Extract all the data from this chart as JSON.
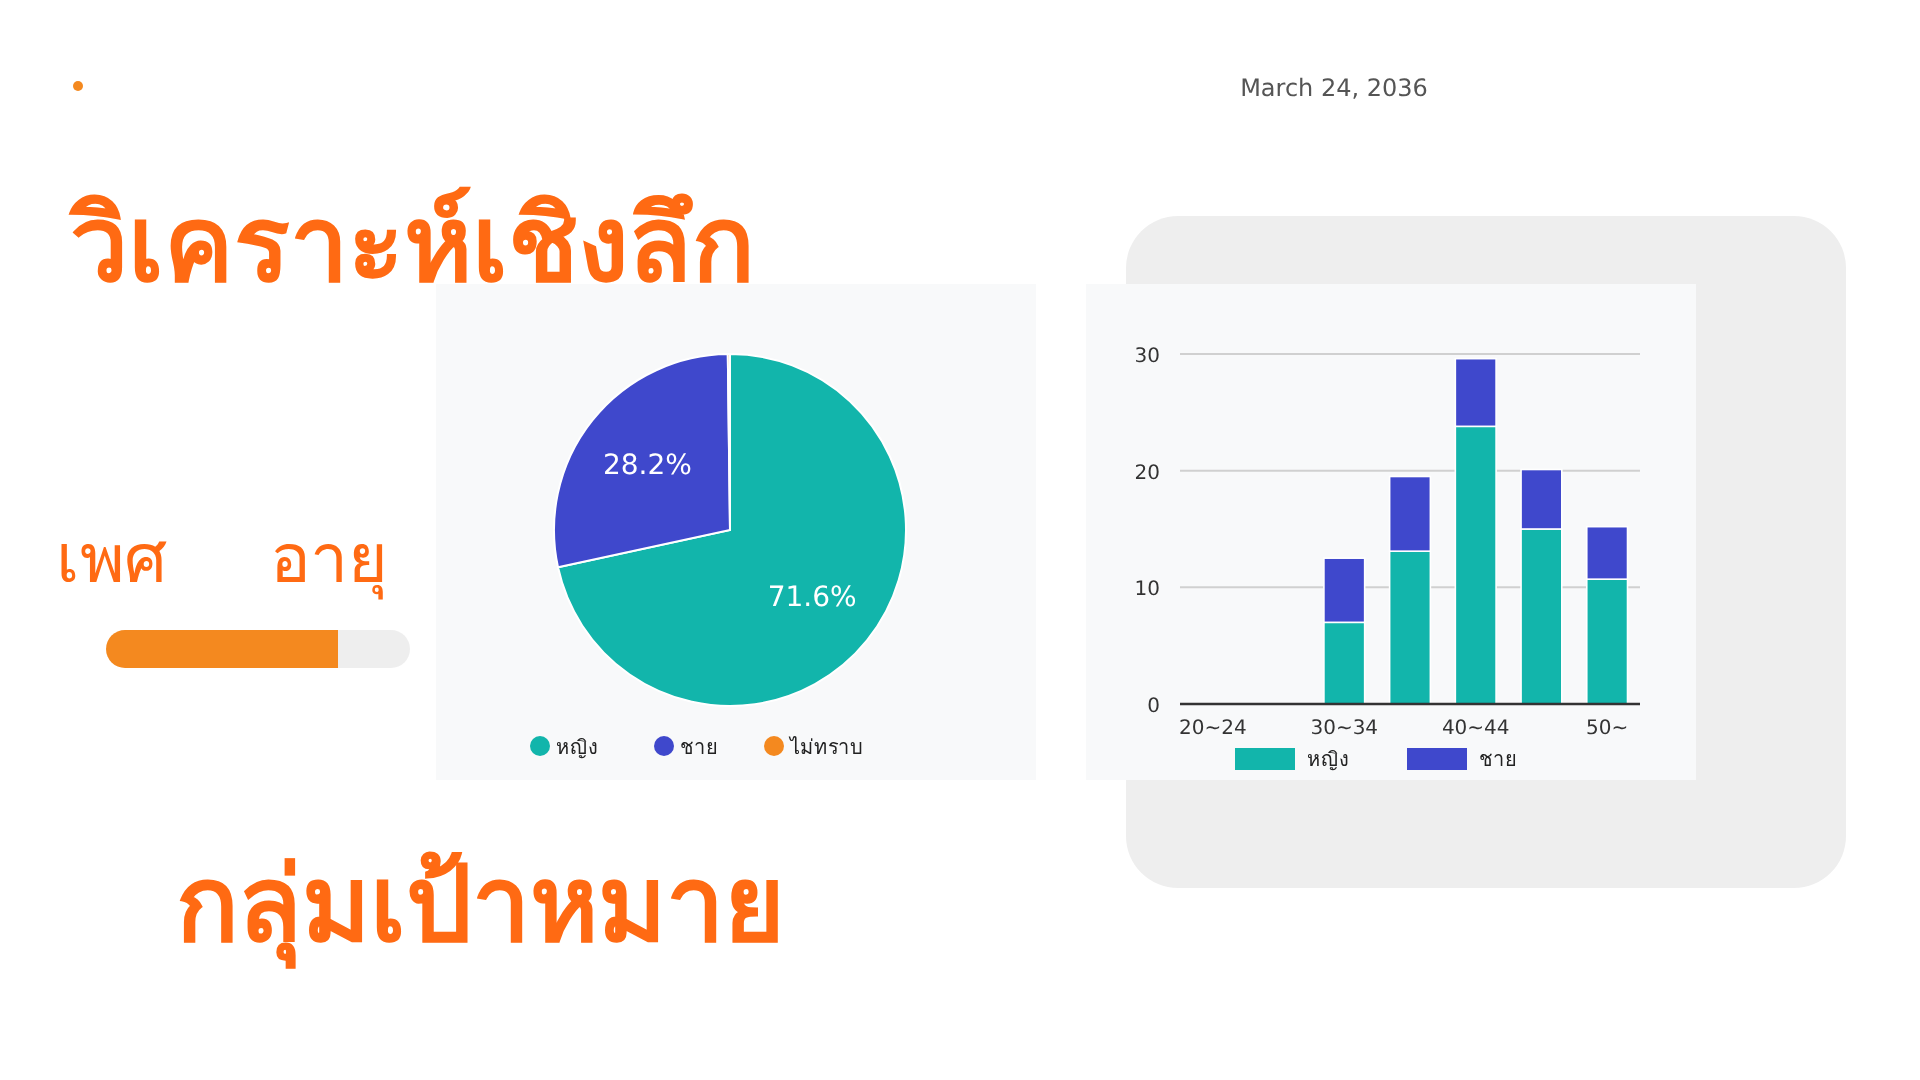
{
  "chart_data": [
    {
      "type": "pie",
      "title": "วิเคราะห์เชิงลึก",
      "annotations": [
        "March 24, 2036",
        "เพศ",
        "กลุ่มเป้าหมาย"
      ],
      "categories": [
        "หญิง",
        "ชาย",
        "ไม่ทราบ"
      ],
      "values": [
        71.6,
        28.2,
        0.2
      ],
      "colors": [
        "#12b5ab",
        "#3f48cc",
        "#f4891f"
      ],
      "value_labels": [
        "71.6%",
        "28.2%",
        null
      ],
      "legend": "bottom"
    },
    {
      "type": "bar",
      "stacked": true,
      "annotations": [
        "อายุ"
      ],
      "categories": [
        "20~24",
        null,
        "30~34",
        null,
        "40~44",
        null,
        "50~"
      ],
      "series": [
        {
          "name": "หญิง",
          "color": "#12b5ab",
          "values": [
            0,
            0,
            7.0,
            13.1,
            23.8,
            15.0,
            10.7
          ]
        },
        {
          "name": "ชาย",
          "color": "#3f48cc",
          "values": [
            0,
            0,
            5.5,
            6.4,
            5.8,
            5.1,
            4.5
          ]
        }
      ],
      "ylim": [
        0,
        30
      ],
      "yticks": [
        0,
        10,
        20,
        30
      ],
      "grid": "y",
      "legend": "bottom"
    }
  ]
}
